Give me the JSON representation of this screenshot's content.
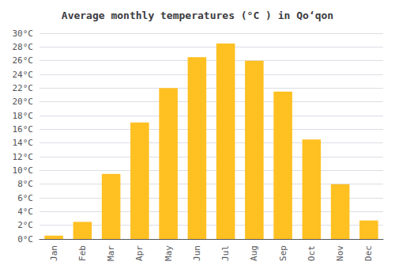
{
  "chart_data": {
    "type": "bar",
    "title": "Average monthly temperatures (°C ) in Qoʻqon",
    "categories": [
      "Jan",
      "Feb",
      "Mar",
      "Apr",
      "May",
      "Jun",
      "Jul",
      "Aug",
      "Sep",
      "Oct",
      "Nov",
      "Dec"
    ],
    "values": [
      0.5,
      2.5,
      9.5,
      17,
      22,
      26.5,
      28.5,
      26,
      21.5,
      14.5,
      8,
      2.7
    ],
    "color": "#FFC022",
    "ylim": [
      0,
      30
    ],
    "yticks": [
      {
        "value": 0,
        "label": "0°C"
      },
      {
        "value": 2,
        "label": "2°C"
      },
      {
        "value": 4,
        "label": "4°C"
      },
      {
        "value": 6,
        "label": "6°C"
      },
      {
        "value": 8,
        "label": "8°C"
      },
      {
        "value": 10,
        "label": "10°C"
      },
      {
        "value": 12,
        "label": "12°C"
      },
      {
        "value": 14,
        "label": "14°C"
      },
      {
        "value": 16,
        "label": "16°C"
      },
      {
        "value": 18,
        "label": "18°C"
      },
      {
        "value": 20,
        "label": "20°C"
      },
      {
        "value": 22,
        "label": "22°C"
      },
      {
        "value": 24,
        "label": "24°C"
      },
      {
        "value": 26,
        "label": "26°C"
      },
      {
        "value": 28,
        "label": "28°C"
      },
      {
        "value": 30,
        "label": "30°C"
      }
    ],
    "grid": true
  }
}
